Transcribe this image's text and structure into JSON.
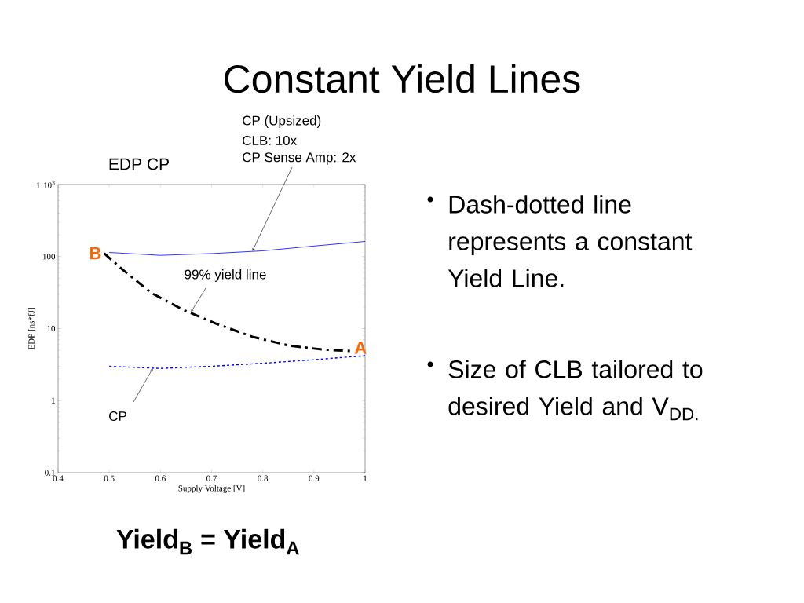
{
  "chart_data": {
    "type": "line",
    "title": "Constant Yield Lines",
    "subtitle": "EDP CP",
    "xlabel": "Supply Voltage [V]",
    "ylabel": "EDP [ns*fJ]",
    "log": "y",
    "marker": "none",
    "xlim": [
      0.4,
      1.0
    ],
    "xticks": [
      0.4,
      0.5,
      0.6,
      0.7,
      0.8,
      0.9,
      1
    ],
    "ylim": [
      0.1,
      1000
    ],
    "yticks": [
      0.1,
      1,
      10,
      100,
      {
        "value": 1000,
        "label": "1·10$^{3}$"
      }
    ],
    "series": [
      {
        "color": "#0000ff",
        "line_style": "solid",
        "x": [
          0.5,
          0.6,
          0.7,
          0.8,
          0.9,
          1.0
        ],
        "values": [
          114,
          104,
          110,
          120,
          140,
          162
        ]
      },
      {
        "color": "#000000",
        "line_style": "dashdot",
        "x": [
          0.49,
          0.526,
          0.583,
          0.646,
          0.713,
          0.78,
          0.851,
          0.92,
          0.971
        ],
        "values": [
          111,
          66,
          31,
          18,
          11.4,
          7.7,
          5.8,
          5.1,
          4.9
        ]
      },
      {
        "color": "#0000ff",
        "line_style": "dotted",
        "x": [
          0.5,
          0.6,
          0.7,
          0.8,
          0.9,
          1.0
        ],
        "values": [
          3.0,
          2.8,
          3.0,
          3.3,
          3.7,
          4.2
        ]
      }
    ],
    "annotations": [
      "CP (Upsized)",
      "CLB: 10x",
      {
        "text": "CP Sense Amp: 2x",
        "x": 0.78,
        "y": 120
      },
      {
        "text": "99% yield line",
        "x": 0.66,
        "y": 17
      },
      {
        "text": "CP",
        "x": 0.585,
        "y": 2.8
      },
      {
        "text": "B",
        "x": 0.49,
        "y": 111
      },
      {
        "text": "A",
        "x": 0.971,
        "y": 4.9
      },
      "Dash-dotted line represents a constant Yield Line.",
      "Size of CLB tailored to desired Yield and V$_{DD.}$",
      "Yield$_{B}$ = Yield$_{A}$"
    ]
  }
}
